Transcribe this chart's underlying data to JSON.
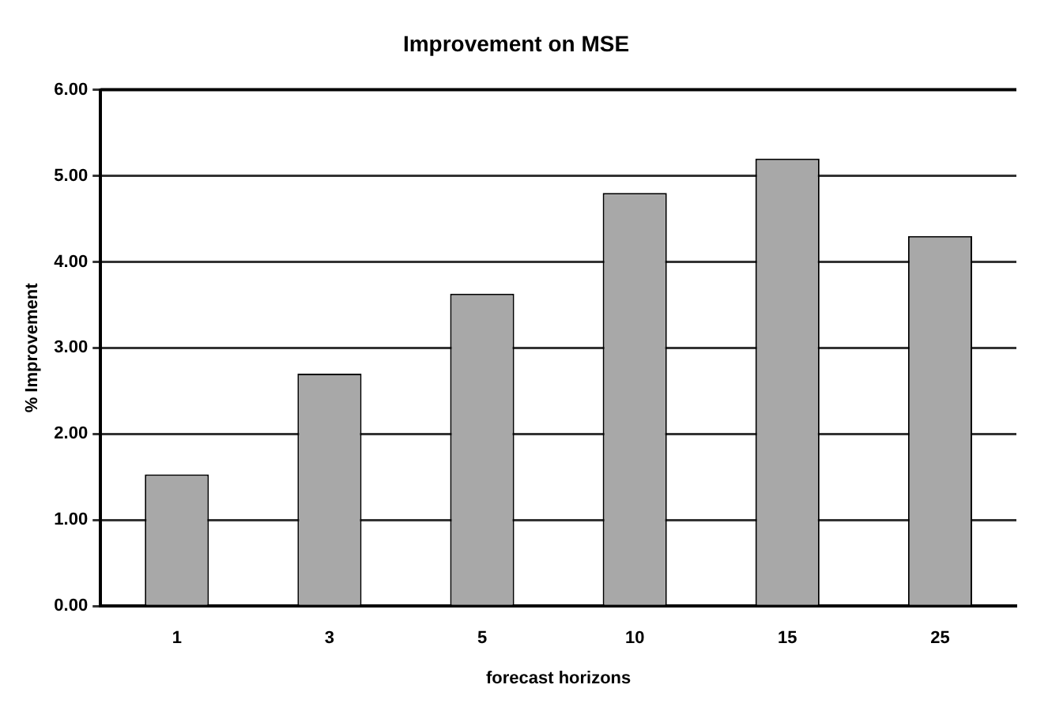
{
  "chart_data": {
    "type": "bar",
    "title": "Improvement on MSE",
    "xlabel": "forecast horizons",
    "ylabel": "% Improvement",
    "categories": [
      "1",
      "3",
      "5",
      "10",
      "15",
      "25"
    ],
    "values": [
      1.53,
      2.7,
      3.63,
      4.8,
      5.2,
      4.3
    ],
    "color": "#a8a8a8",
    "ylim": [
      0,
      6
    ],
    "yticks": [
      {
        "value": 0,
        "label": "0.00"
      },
      {
        "value": 1,
        "label": "1.00"
      },
      {
        "value": 2,
        "label": "2.00"
      },
      {
        "value": 3,
        "label": "3.00"
      },
      {
        "value": 4,
        "label": "4.00"
      },
      {
        "value": 5,
        "label": "5.00"
      },
      {
        "value": 6,
        "label": "6.00"
      }
    ],
    "grid": "y",
    "legend": false
  }
}
